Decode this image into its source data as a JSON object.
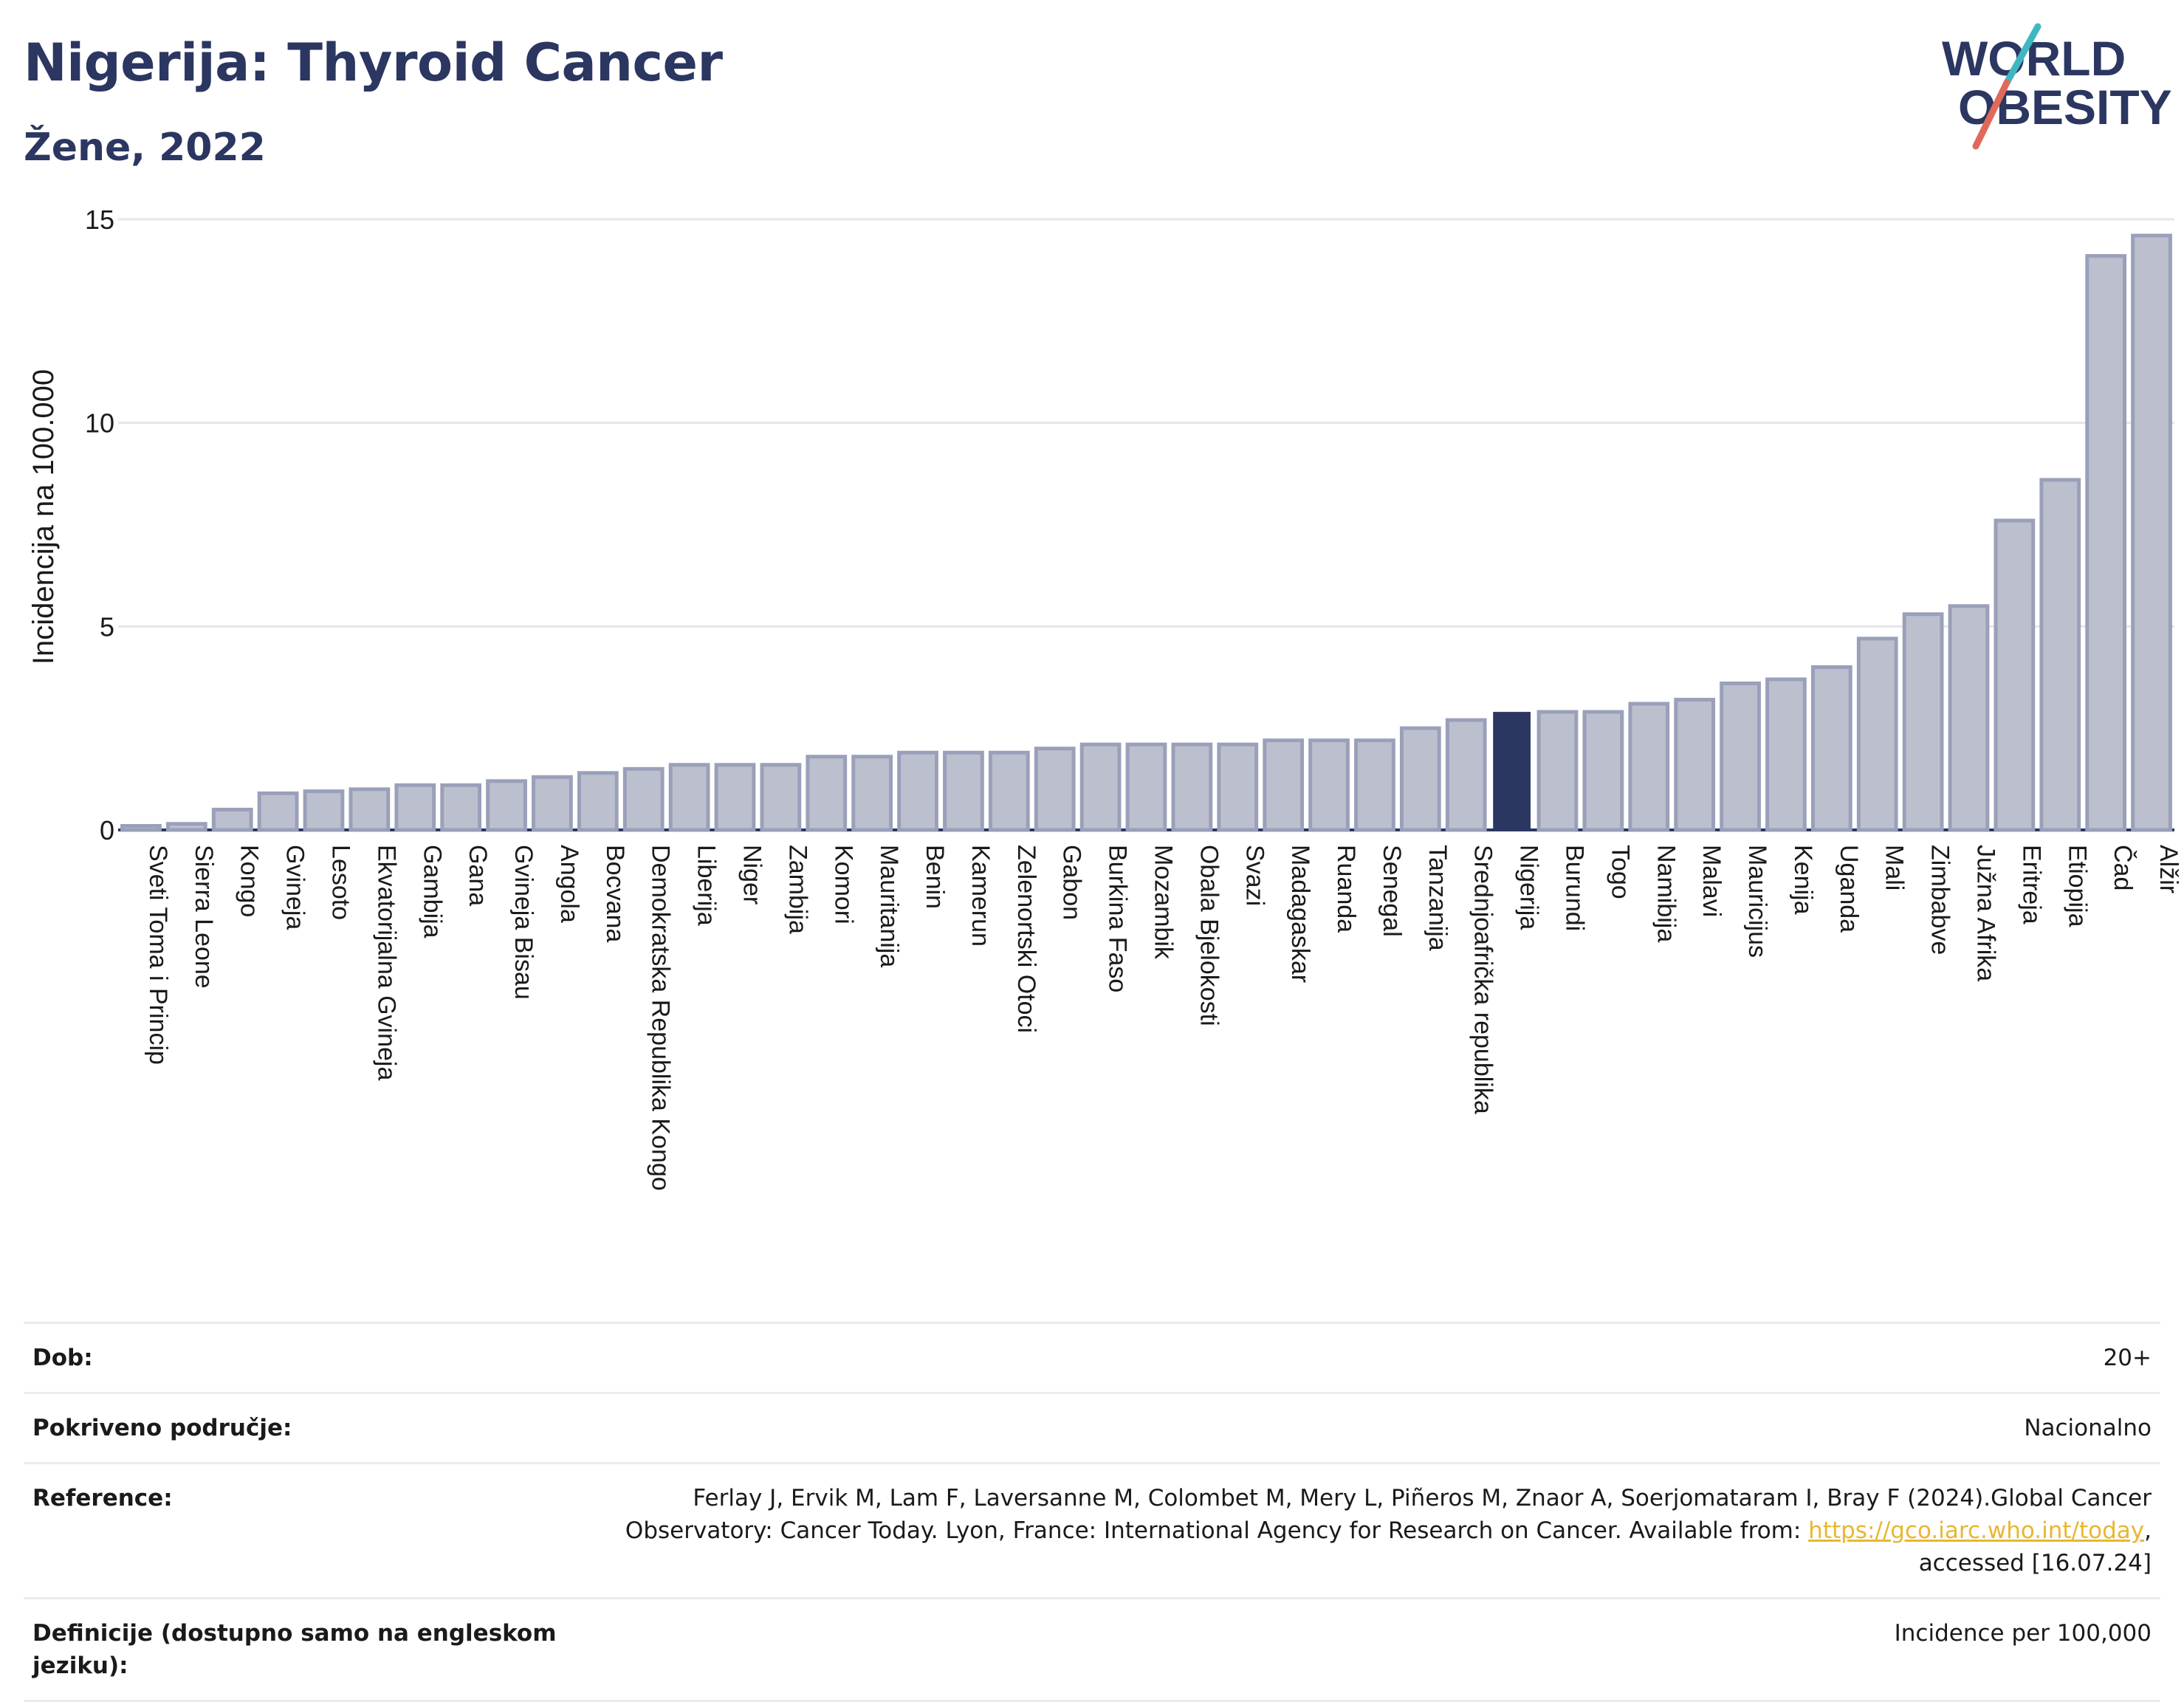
{
  "header": {
    "title": "Nigerija: Thyroid Cancer",
    "subtitle": "Žene, 2022"
  },
  "logo": {
    "line1": "WORLD",
    "line2": "OBESITY"
  },
  "colors": {
    "bar": "#bcc0ce",
    "bar_stroke": "#9aa0b9",
    "highlight": "#2b3661",
    "grid": "#e6e6ea",
    "axis": "#2b3661"
  },
  "chart_data": {
    "type": "bar",
    "ylabel": "Incidencija na 100.000",
    "ylim": [
      0,
      15
    ],
    "yticks": [
      0,
      5,
      10,
      15
    ],
    "highlight": "Nigerija",
    "categories": [
      "Sveti Toma i Princip",
      "Sierra Leone",
      "Kongo",
      "Gvineja",
      "Lesoto",
      "Ekvatorijalna Gvineja",
      "Gambija",
      "Gana",
      "Gvineja Bisau",
      "Angola",
      "Bocvana",
      "Demokratska Republika Kongo",
      "Liberija",
      "Niger",
      "Zambija",
      "Komori",
      "Mauritanija",
      "Benin",
      "Kamerun",
      "Zelenortski Otoci",
      "Gabon",
      "Burkina Faso",
      "Mozambik",
      "Obala Bjelokosti",
      "Svazi",
      "Madagaskar",
      "Ruanda",
      "Senegal",
      "Tanzanija",
      "Srednjoafrička republika",
      "Nigerija",
      "Burundi",
      "Togo",
      "Namibija",
      "Malavi",
      "Mauricijus",
      "Kenija",
      "Uganda",
      "Mali",
      "Zimbabve",
      "Južna Afrika",
      "Eritreja",
      "Etiopija",
      "Čad",
      "Alžir"
    ],
    "values": [
      0.1,
      0.15,
      0.5,
      0.9,
      0.95,
      1.0,
      1.1,
      1.1,
      1.2,
      1.3,
      1.4,
      1.5,
      1.6,
      1.6,
      1.6,
      1.8,
      1.8,
      1.9,
      1.9,
      1.9,
      2.0,
      2.1,
      2.1,
      2.1,
      2.1,
      2.2,
      2.2,
      2.2,
      2.5,
      2.7,
      2.9,
      2.9,
      2.9,
      3.1,
      3.2,
      3.6,
      3.7,
      4.0,
      4.7,
      5.3,
      5.5,
      7.6,
      8.6,
      14.1,
      14.6
    ]
  },
  "info": {
    "rows": [
      {
        "label": "Dob:",
        "value": "20+"
      },
      {
        "label": "Pokriveno područje:",
        "value": "Nacionalno"
      },
      {
        "label": "Reference:",
        "value_before": "Ferlay J, Ervik M, Lam F, Laversanne M, Colombet M, Mery L, Piñeros M, Znaor A, Soerjomataram I, Bray F (2024).Global Cancer Observatory: Cancer Today. Lyon, France: International Agency for Research on Cancer. Available from: ",
        "link": "https://gco.iarc.who.int/today",
        "value_after": ", accessed [16.07.24]"
      },
      {
        "label": "Definicije (dostupno samo na engleskom jeziku):",
        "value": "Incidence per 100,000"
      }
    ]
  }
}
